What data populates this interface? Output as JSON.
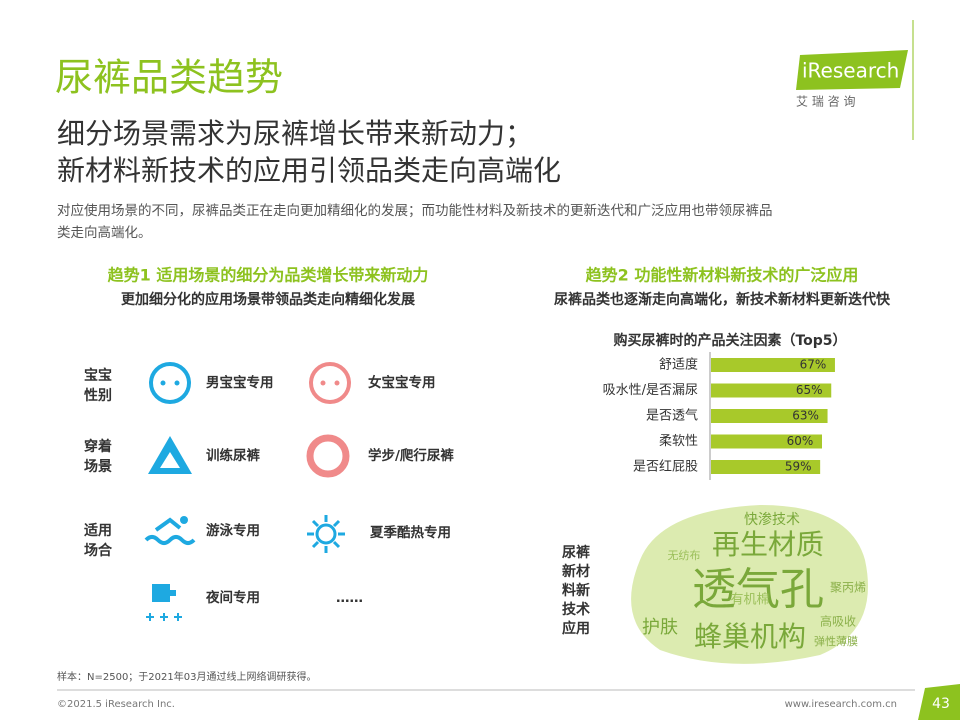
{
  "header": {
    "title": "尿裤品类趋势",
    "subtitle_lines": [
      "细分场景需求为尿裤增长带来新动力；",
      "新材料新技术的应用引领品类走向高端化"
    ],
    "description_lines": [
      "对应使用场景的不同，尿裤品类正在走向更加精细化的发展；而功能性材料及新技术的更新迭代和广泛应用也带领尿裤品",
      "类走向高端化。"
    ]
  },
  "logo": {
    "brand": "iResearch",
    "cn": "艾 瑞 咨 询"
  },
  "trend1": {
    "heading": "趋势1 适用场景的细分为品类增长带来新动力",
    "subheading": "更加细分化的应用场景带领品类走向精细化发展",
    "groups": [
      {
        "label_lines": [
          "宝宝",
          "性别"
        ],
        "items": [
          "男宝宝专用",
          "女宝宝专用"
        ]
      },
      {
        "label_lines": [
          "穿着",
          "场景"
        ],
        "items": [
          "训练尿裤",
          "学步/爬行尿裤"
        ]
      },
      {
        "label_lines": [
          "适用",
          "场合"
        ],
        "items": [
          "游泳专用",
          "夏季酷热专用",
          "夜间专用",
          "……"
        ]
      }
    ]
  },
  "trend2": {
    "heading": "趋势2 功能性新材料新技术的广泛应用",
    "subheading": "尿裤品类也逐渐走向高端化，新技术新材料更新迭代快",
    "side_label_lines": [
      "尿裤",
      "新材",
      "料新",
      "技术",
      "应用"
    ],
    "word_cloud": [
      "快渗技术",
      "再生材质",
      "无纺布",
      "透气孔",
      "聚丙烯",
      "有机棉",
      "护肤",
      "高吸收",
      "蜂巢机构",
      "弹性薄膜"
    ]
  },
  "chart_data": {
    "type": "bar",
    "orientation": "horizontal",
    "title": "购买尿裤时的产品关注因素（Top5）",
    "categories": [
      "舒适度",
      "吸水性/是否漏尿",
      "是否透气",
      "柔软性",
      "是否红屁股"
    ],
    "values": [
      67,
      65,
      63,
      60,
      59
    ],
    "value_labels": [
      "67%",
      "65%",
      "63%",
      "60%",
      "59%"
    ],
    "color": "#a8c92a"
  },
  "footer": {
    "note": "样本：N=2500；于2021年03月通过线上网络调研获得。",
    "copyright": "©2021.5 iResearch Inc.",
    "url": "www.iresearch.com.cn",
    "page": "43"
  }
}
